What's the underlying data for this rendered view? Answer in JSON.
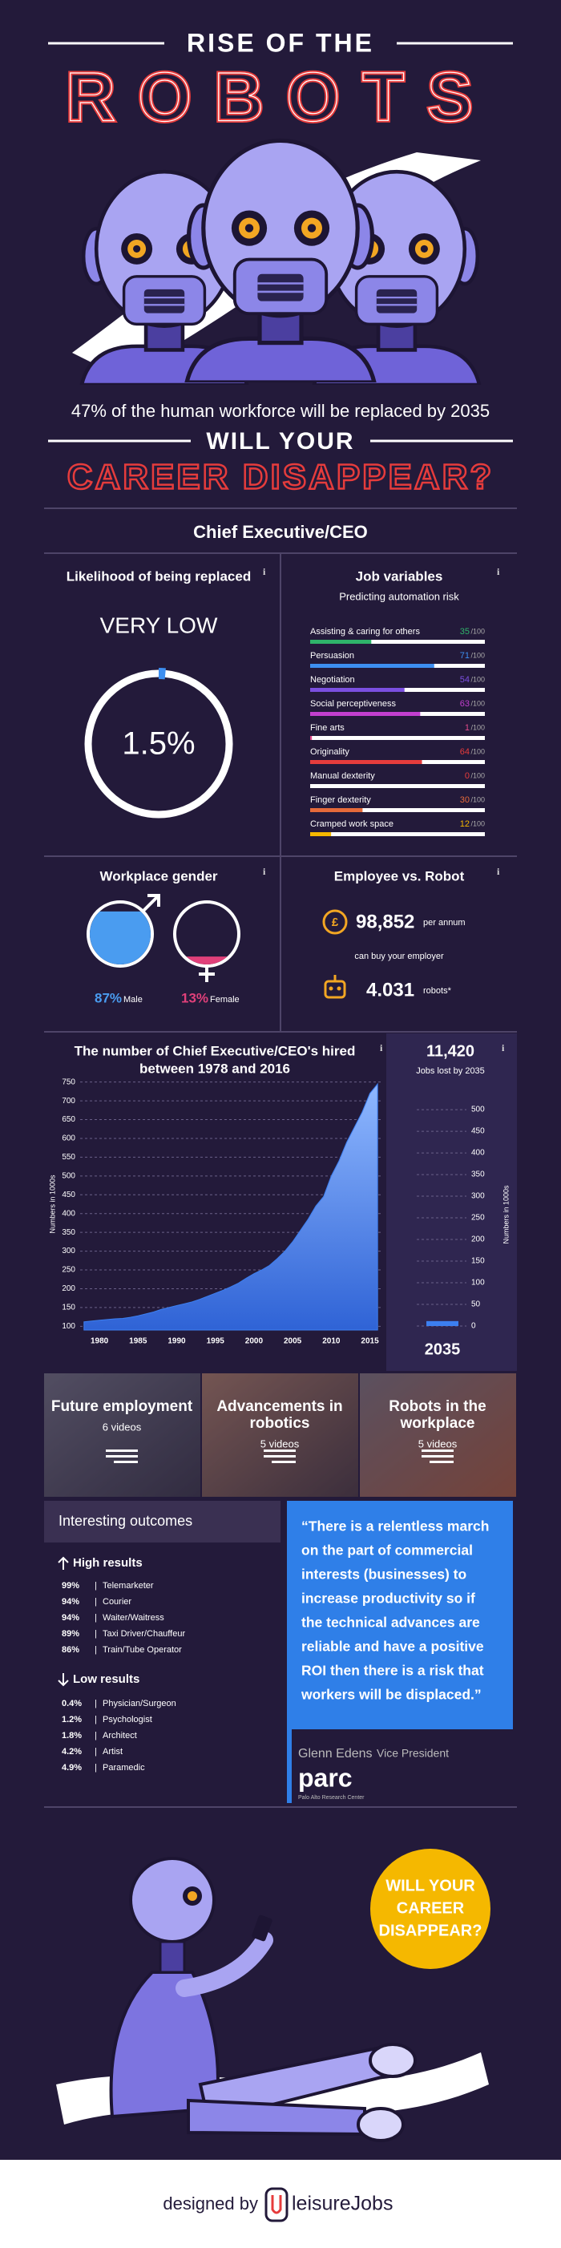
{
  "header": {
    "title_top": "RISE OF THE",
    "title_main": "ROBOTS",
    "stat": "47% of the human workforce will be replaced by 2035",
    "question_top": "WILL YOUR",
    "question_main": "CAREER DISAPPEAR?"
  },
  "job_title": "Chief Executive/CEO",
  "info_icon": "i",
  "likelihood": {
    "title": "Likelihood of being replaced",
    "rating": "VERY LOW",
    "value": 1.5,
    "value_label": "1.5%"
  },
  "job_variables": {
    "title": "Job variables",
    "subtitle": "Predicting automation risk",
    "max": 100,
    "scale_label": "/100",
    "items": [
      {
        "name": "Assisting & caring for others",
        "value": 35,
        "color": "#2fb36a"
      },
      {
        "name": "Persuasion",
        "value": 71,
        "color": "#3d8ef0"
      },
      {
        "name": "Negotiation",
        "value": 54,
        "color": "#7b4fe0"
      },
      {
        "name": "Social perceptiveness",
        "value": 63,
        "color": "#c23fcf"
      },
      {
        "name": "Fine arts",
        "value": 1,
        "color": "#e04a8a"
      },
      {
        "name": "Originality",
        "value": 64,
        "color": "#e63c3c"
      },
      {
        "name": "Manual dexterity",
        "value": 0,
        "color": "#e63c3c"
      },
      {
        "name": "Finger dexterity",
        "value": 30,
        "color": "#e66a3a"
      },
      {
        "name": "Cramped work space",
        "value": 12,
        "color": "#f5b800"
      }
    ]
  },
  "gender": {
    "title": "Workplace gender",
    "male": {
      "value": 87,
      "label": "87%",
      "name": "Male",
      "color": "#4a9cf0"
    },
    "female": {
      "value": 13,
      "label": "13%",
      "name": "Female",
      "color": "#e0407a"
    }
  },
  "employee_vs_robot": {
    "title": "Employee vs. Robot",
    "currency_symbol": "£",
    "salary": "98,852",
    "salary_unit": "per annum",
    "middle": "can buy your employer",
    "robots": "4.031",
    "robots_unit": "robots*"
  },
  "chart_data": [
    {
      "type": "area",
      "title_lines": [
        "The number of Chief Executive/CEO's hired",
        "between 1978 and 2016"
      ],
      "y_label": "Numbers in 1000s",
      "color": "#3c7ff0",
      "x": [
        1978,
        1979,
        1980,
        1981,
        1982,
        1983,
        1984,
        1985,
        1986,
        1987,
        1988,
        1989,
        1990,
        1991,
        1992,
        1993,
        1994,
        1995,
        1996,
        1997,
        1998,
        1999,
        2000,
        2001,
        2002,
        2003,
        2004,
        2005,
        2006,
        2007,
        2008,
        2009,
        2010,
        2011,
        2012,
        2013,
        2014,
        2015,
        2016
      ],
      "values": [
        112,
        114,
        116,
        118,
        120,
        121,
        124,
        128,
        133,
        138,
        145,
        150,
        155,
        160,
        165,
        172,
        180,
        188,
        196,
        205,
        215,
        228,
        240,
        250,
        262,
        280,
        300,
        325,
        355,
        385,
        420,
        445,
        500,
        540,
        590,
        630,
        670,
        720,
        745
      ],
      "xlim": [
        1977.5,
        2016.5
      ],
      "xticks": [
        1980,
        1985,
        1990,
        1995,
        2000,
        2005,
        2010,
        2015
      ],
      "ylim": [
        90,
        760
      ],
      "yticks": [
        100,
        150,
        200,
        250,
        300,
        350,
        400,
        450,
        500,
        550,
        600,
        650,
        700,
        750
      ],
      "grid": true
    },
    {
      "type": "bar",
      "title": "Jobs lost by 2035",
      "y_label": "Numbers in 1000s",
      "color": "#3c7ff0",
      "categories": [
        "2035"
      ],
      "values": [
        11.42
      ],
      "value_labels": [
        "11,420"
      ],
      "ylim": [
        0,
        515
      ],
      "yticks": [
        0,
        50,
        100,
        150,
        200,
        250,
        300,
        350,
        400,
        450,
        500
      ],
      "grid": true
    }
  ],
  "videos": [
    {
      "title_lines": [
        "Future employment"
      ],
      "count": "6 videos"
    },
    {
      "title_lines": [
        "Advancements in",
        "robotics"
      ],
      "count": "5 videos"
    },
    {
      "title_lines": [
        "Robots in the",
        "workplace"
      ],
      "count": "5 videos"
    }
  ],
  "outcomes": {
    "title": "Interesting outcomes",
    "separator": "|",
    "high_title": "High results",
    "high": [
      {
        "value": "99%",
        "job": "Telemarketer"
      },
      {
        "value": "94%",
        "job": "Courier"
      },
      {
        "value": "94%",
        "job": "Waiter/Waitress"
      },
      {
        "value": "89%",
        "job": "Taxi Driver/Chauffeur"
      },
      {
        "value": "86%",
        "job": "Train/Tube Operator"
      }
    ],
    "low_title": "Low results",
    "low": [
      {
        "value": "0.4%",
        "job": "Physician/Surgeon"
      },
      {
        "value": "1.2%",
        "job": "Psychologist"
      },
      {
        "value": "1.8%",
        "job": "Architect"
      },
      {
        "value": "4.2%",
        "job": "Artist"
      },
      {
        "value": "4.9%",
        "job": "Paramedic"
      }
    ]
  },
  "quote": {
    "lines": [
      "“There is a relentless march",
      "on the part of commercial",
      "interests (businesses) to",
      "increase productivity so if",
      "the technical advances are",
      "reliable and have a positive",
      "ROI then there is a risk that",
      "workers will be displaced.”"
    ],
    "name": "Glenn Edens",
    "role": "Vice President",
    "org": "parc",
    "org_full": "Palo Alto Research Center"
  },
  "badge": {
    "lines": [
      "WILL YOUR",
      "CAREER",
      "DISAPPEAR?"
    ]
  },
  "footer": {
    "designed_by": "designed by",
    "brand": "leisureJobs"
  }
}
